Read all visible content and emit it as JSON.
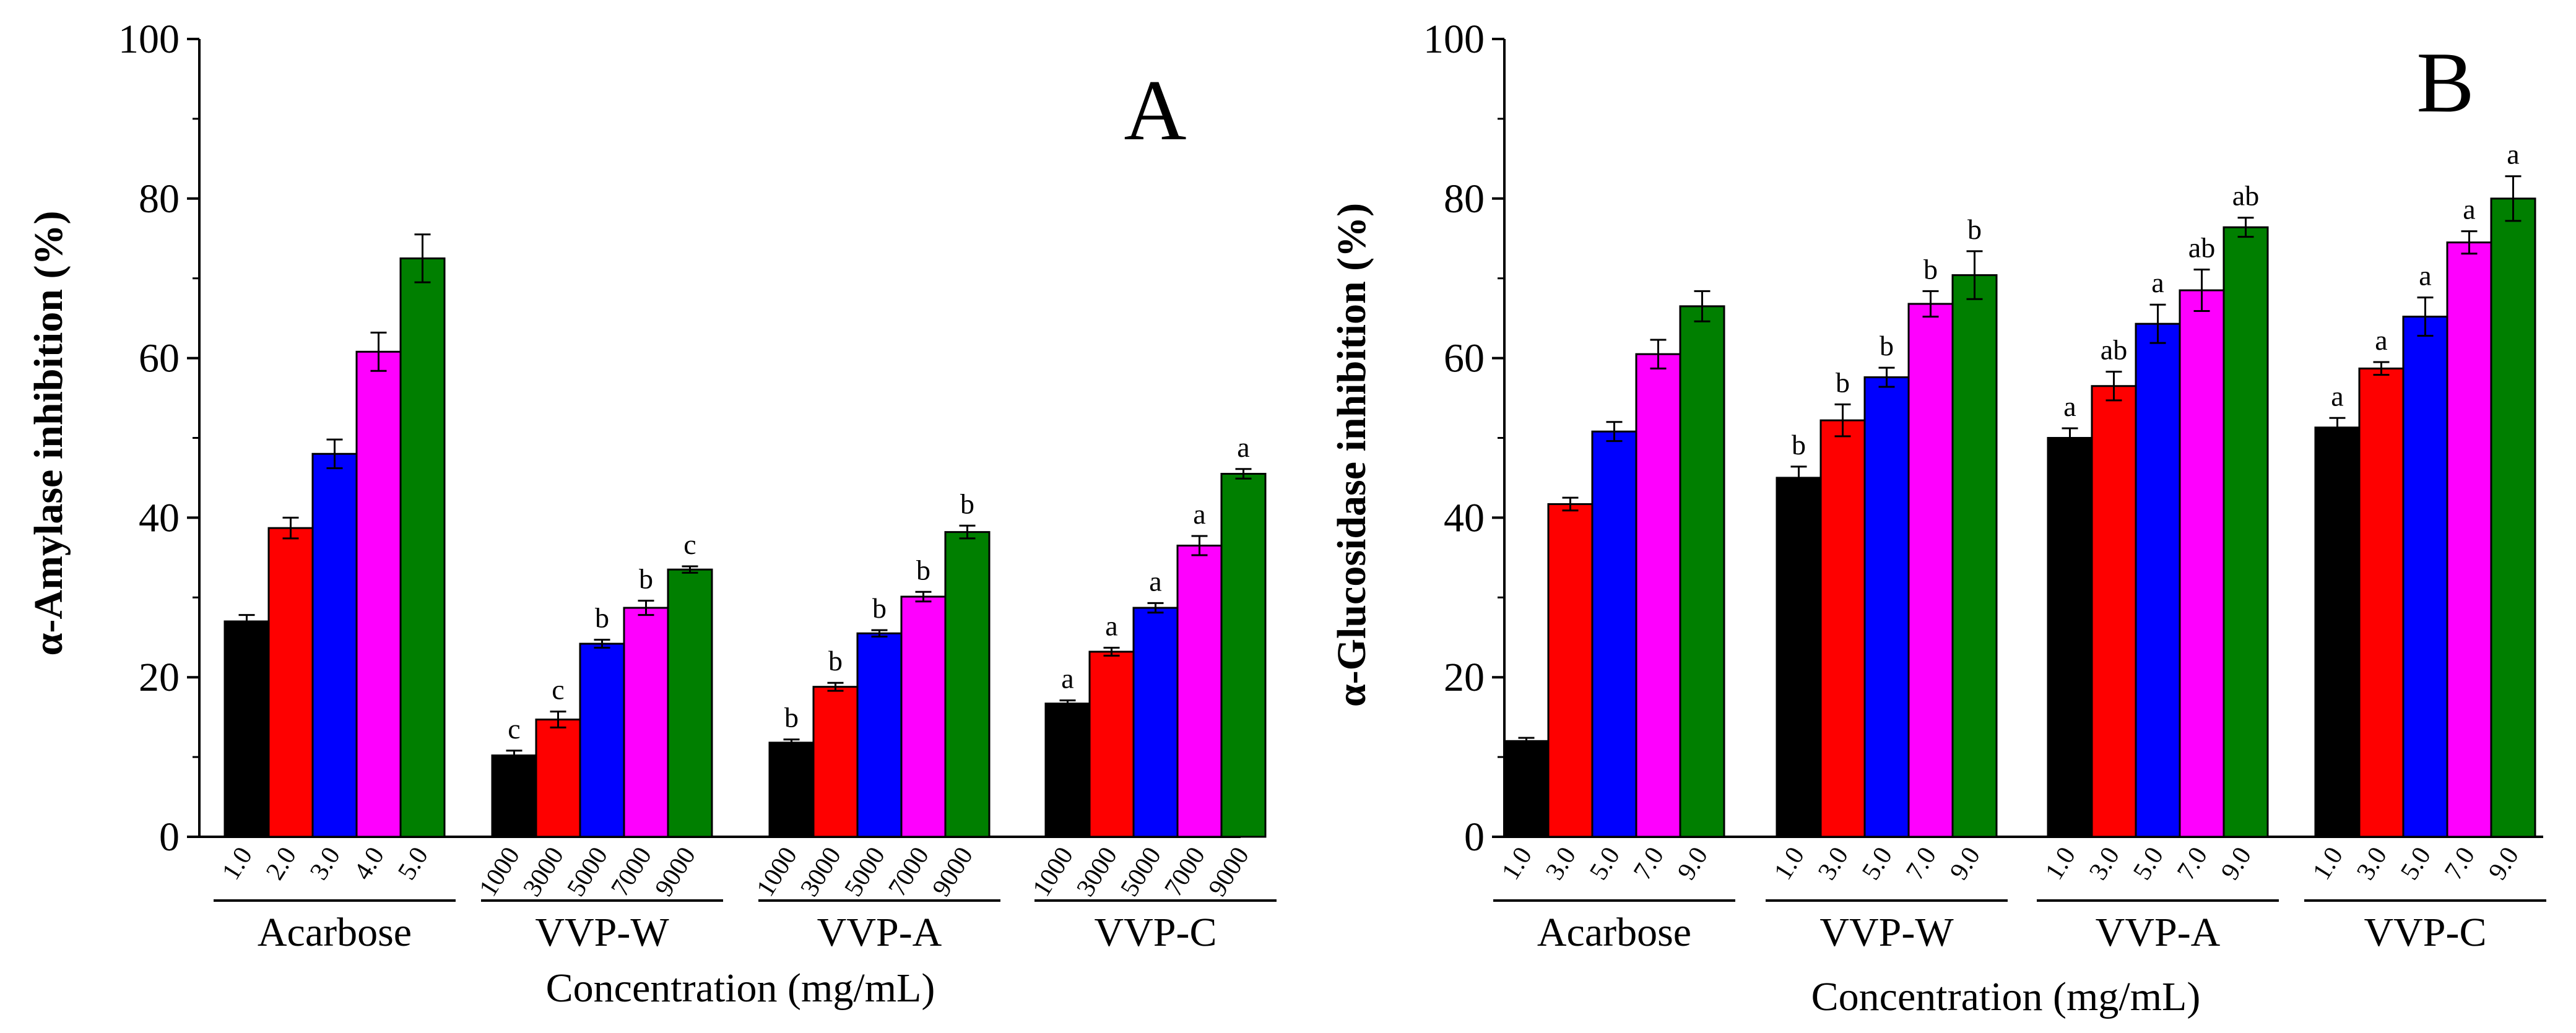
{
  "chart_data": [
    {
      "type": "bar",
      "panel_label": "A",
      "ylabel": "α-Amylase inhibition (%)",
      "xlabel": "Concentration (mg/mL)",
      "ylim": [
        0,
        100
      ],
      "yticks": [
        "0",
        "20",
        "40",
        "60",
        "80",
        "100"
      ],
      "groups": [
        {
          "name": "Acarbose",
          "bars": [
            {
              "label": "1.0",
              "value": 27.0,
              "error": 0.8,
              "sig": ""
            },
            {
              "label": "2.0",
              "value": 38.7,
              "error": 1.3,
              "sig": ""
            },
            {
              "label": "3.0",
              "value": 48.0,
              "error": 1.8,
              "sig": ""
            },
            {
              "label": "4.0",
              "value": 60.8,
              "error": 2.4,
              "sig": ""
            },
            {
              "label": "5.0",
              "value": 72.5,
              "error": 3.0,
              "sig": ""
            }
          ]
        },
        {
          "name": "VVP-W",
          "bars": [
            {
              "label": "1000",
              "value": 10.2,
              "error": 0.6,
              "sig": "c"
            },
            {
              "label": "3000",
              "value": 14.7,
              "error": 1.0,
              "sig": "c"
            },
            {
              "label": "5000",
              "value": 24.2,
              "error": 0.5,
              "sig": "b"
            },
            {
              "label": "7000",
              "value": 28.7,
              "error": 0.9,
              "sig": "b"
            },
            {
              "label": "9000",
              "value": 33.5,
              "error": 0.4,
              "sig": "c"
            }
          ]
        },
        {
          "name": "VVP-A",
          "bars": [
            {
              "label": "1000",
              "value": 11.8,
              "error": 0.4,
              "sig": "b"
            },
            {
              "label": "3000",
              "value": 18.8,
              "error": 0.5,
              "sig": "b"
            },
            {
              "label": "5000",
              "value": 25.5,
              "error": 0.4,
              "sig": "b"
            },
            {
              "label": "7000",
              "value": 30.1,
              "error": 0.6,
              "sig": "b"
            },
            {
              "label": "9000",
              "value": 38.2,
              "error": 0.8,
              "sig": "b"
            }
          ]
        },
        {
          "name": "VVP-C",
          "bars": [
            {
              "label": "1000",
              "value": 16.7,
              "error": 0.4,
              "sig": "a"
            },
            {
              "label": "3000",
              "value": 23.2,
              "error": 0.5,
              "sig": "a"
            },
            {
              "label": "5000",
              "value": 28.7,
              "error": 0.6,
              "sig": "a"
            },
            {
              "label": "7000",
              "value": 36.5,
              "error": 1.2,
              "sig": "a"
            },
            {
              "label": "9000",
              "value": 45.5,
              "error": 0.6,
              "sig": "a"
            }
          ]
        }
      ]
    },
    {
      "type": "bar",
      "panel_label": "B",
      "ylabel": "α-Glucosidase inhibition (%)",
      "xlabel": "Concentration (mg/mL)",
      "ylim": [
        0,
        100
      ],
      "yticks": [
        "0",
        "20",
        "40",
        "60",
        "80",
        "100"
      ],
      "groups": [
        {
          "name": "Acarbose",
          "bars": [
            {
              "label": "1.0",
              "value": 12.0,
              "error": 0.4,
              "sig": ""
            },
            {
              "label": "3.0",
              "value": 41.7,
              "error": 0.8,
              "sig": ""
            },
            {
              "label": "5.0",
              "value": 50.8,
              "error": 1.2,
              "sig": ""
            },
            {
              "label": "7.0",
              "value": 60.5,
              "error": 1.8,
              "sig": ""
            },
            {
              "label": "9.0",
              "value": 66.5,
              "error": 1.9,
              "sig": ""
            }
          ]
        },
        {
          "name": "VVP-W",
          "bars": [
            {
              "label": "1.0",
              "value": 45.0,
              "error": 1.4,
              "sig": "b"
            },
            {
              "label": "3.0",
              "value": 52.2,
              "error": 2.0,
              "sig": "b"
            },
            {
              "label": "5.0",
              "value": 57.6,
              "error": 1.2,
              "sig": "b"
            },
            {
              "label": "7.0",
              "value": 66.8,
              "error": 1.6,
              "sig": "b"
            },
            {
              "label": "9.0",
              "value": 70.4,
              "error": 3.0,
              "sig": "b"
            }
          ]
        },
        {
          "name": "VVP-A",
          "bars": [
            {
              "label": "1.0",
              "value": 50.0,
              "error": 1.2,
              "sig": "a"
            },
            {
              "label": "3.0",
              "value": 56.5,
              "error": 1.8,
              "sig": "ab"
            },
            {
              "label": "5.0",
              "value": 64.3,
              "error": 2.4,
              "sig": "a"
            },
            {
              "label": "7.0",
              "value": 68.5,
              "error": 2.6,
              "sig": "ab"
            },
            {
              "label": "9.0",
              "value": 76.4,
              "error": 1.2,
              "sig": "ab"
            }
          ]
        },
        {
          "name": "VVP-C",
          "bars": [
            {
              "label": "1.0",
              "value": 51.3,
              "error": 1.2,
              "sig": "a"
            },
            {
              "label": "3.0",
              "value": 58.7,
              "error": 0.8,
              "sig": "a"
            },
            {
              "label": "5.0",
              "value": 65.2,
              "error": 2.4,
              "sig": "a"
            },
            {
              "label": "7.0",
              "value": 74.5,
              "error": 1.4,
              "sig": "a"
            },
            {
              "label": "9.0",
              "value": 80.0,
              "error": 2.8,
              "sig": "a"
            }
          ]
        }
      ]
    }
  ],
  "colors": {
    "bars": [
      "#000000",
      "#fe0000",
      "#0000fe",
      "#fe00fe",
      "#007f00"
    ],
    "axis": "#000000"
  }
}
